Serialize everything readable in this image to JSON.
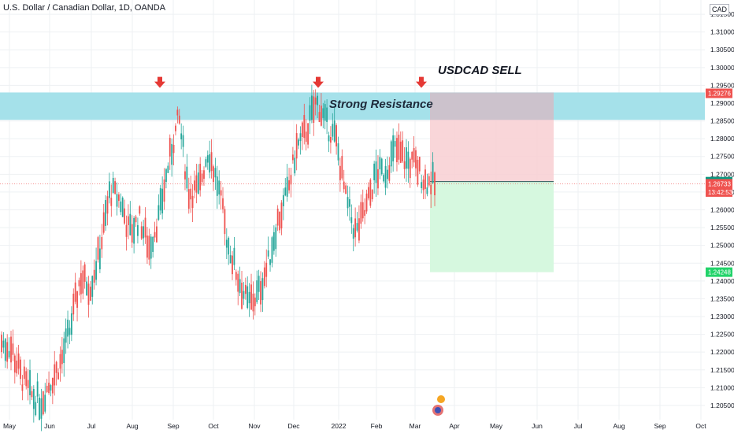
{
  "header": {
    "title": "U.S. Dollar / Canadian Dollar, 1D, OANDA",
    "currency": "CAD"
  },
  "chart_data": {
    "type": "candlestick",
    "symbol": "USDCAD",
    "ylim": [
      1.201,
      1.319
    ],
    "y_ticks": [
      "1.31500",
      "1.31000",
      "1.30500",
      "1.30000",
      "1.29500",
      "1.29000",
      "1.28500",
      "1.28000",
      "1.27500",
      "1.27000",
      "1.26500",
      "1.26000",
      "1.25500",
      "1.25000",
      "1.24500",
      "1.24000",
      "1.23500",
      "1.23000",
      "1.22500",
      "1.22000",
      "1.21500",
      "1.21000",
      "1.20500"
    ],
    "x_ticks": [
      "May",
      "Jun",
      "Jul",
      "Aug",
      "Sep",
      "Oct",
      "Nov",
      "Dec",
      "2022",
      "Feb",
      "Mar",
      "Apr",
      "May",
      "Jun",
      "Jul",
      "Aug",
      "Sep",
      "Oct"
    ],
    "grid": true,
    "colors": {
      "up": "#26a69a",
      "down": "#ef5350",
      "resistance_zone": "#a5e1ea",
      "stop_zone": "#f8cfd2",
      "target_zone": "#d6f8df",
      "overlap_zone": "#c7bfca",
      "arrow": "#e53935"
    },
    "ohlc_points": [
      [
        1.23,
        1.215
      ],
      [
        1.226,
        1.216
      ],
      [
        1.218,
        1.208
      ],
      [
        1.212,
        1.204
      ],
      [
        1.207,
        1.205
      ],
      [
        1.215,
        1.209
      ],
      [
        1.22,
        1.214
      ],
      [
        1.235,
        1.219
      ],
      [
        1.248,
        1.234
      ],
      [
        1.244,
        1.233
      ],
      [
        1.256,
        1.241
      ],
      [
        1.278,
        1.252
      ],
      [
        1.268,
        1.258
      ],
      [
        1.26,
        1.247
      ],
      [
        1.264,
        1.251
      ],
      [
        1.253,
        1.246
      ],
      [
        1.265,
        1.251
      ],
      [
        1.283,
        1.264
      ],
      [
        1.29,
        1.282
      ],
      [
        1.268,
        1.262
      ],
      [
        1.27,
        1.261
      ],
      [
        1.288,
        1.266
      ],
      [
        1.272,
        1.261
      ],
      [
        1.256,
        1.245
      ],
      [
        1.245,
        1.237
      ],
      [
        1.236,
        1.231
      ],
      [
        1.239,
        1.233
      ],
      [
        1.25,
        1.238
      ],
      [
        1.264,
        1.249
      ],
      [
        1.27,
        1.258
      ],
      [
        1.286,
        1.269
      ],
      [
        1.288,
        1.277
      ],
      [
        1.296,
        1.285
      ],
      [
        1.288,
        1.28
      ],
      [
        1.283,
        1.276
      ],
      [
        1.266,
        1.259
      ],
      [
        1.256,
        1.25
      ],
      [
        1.264,
        1.256
      ],
      [
        1.278,
        1.262
      ],
      [
        1.275,
        1.267
      ],
      [
        1.282,
        1.272
      ],
      [
        1.28,
        1.268
      ],
      [
        1.276,
        1.27
      ],
      [
        1.271,
        1.265
      ],
      [
        1.2674,
        1.2674
      ]
    ],
    "annotations": {
      "strong_resistance": "Strong Resistance",
      "trade": "USDCAD SELL"
    },
    "price_labels": [
      {
        "value": 1.29276,
        "text": "1.29276",
        "color": "#ef5350"
      },
      {
        "value": 1.26793,
        "text": "1.26793",
        "color": "#089981"
      },
      {
        "value": 1.26733,
        "text": "1.26733",
        "color": "#ef5350"
      },
      {
        "value": 1.265,
        "text": "13:42:53",
        "color": "#ef5350"
      },
      {
        "value": 1.24248,
        "text": "1.24248",
        "color": "#22d36a"
      }
    ],
    "resistance_band": [
      1.2853,
      1.293
    ],
    "trade_box": {
      "entry": 1.26793,
      "stop": 1.29276,
      "target": 1.24248
    },
    "signal_arrows_dates": [
      "Aug",
      "Dec",
      "Mar"
    ]
  }
}
